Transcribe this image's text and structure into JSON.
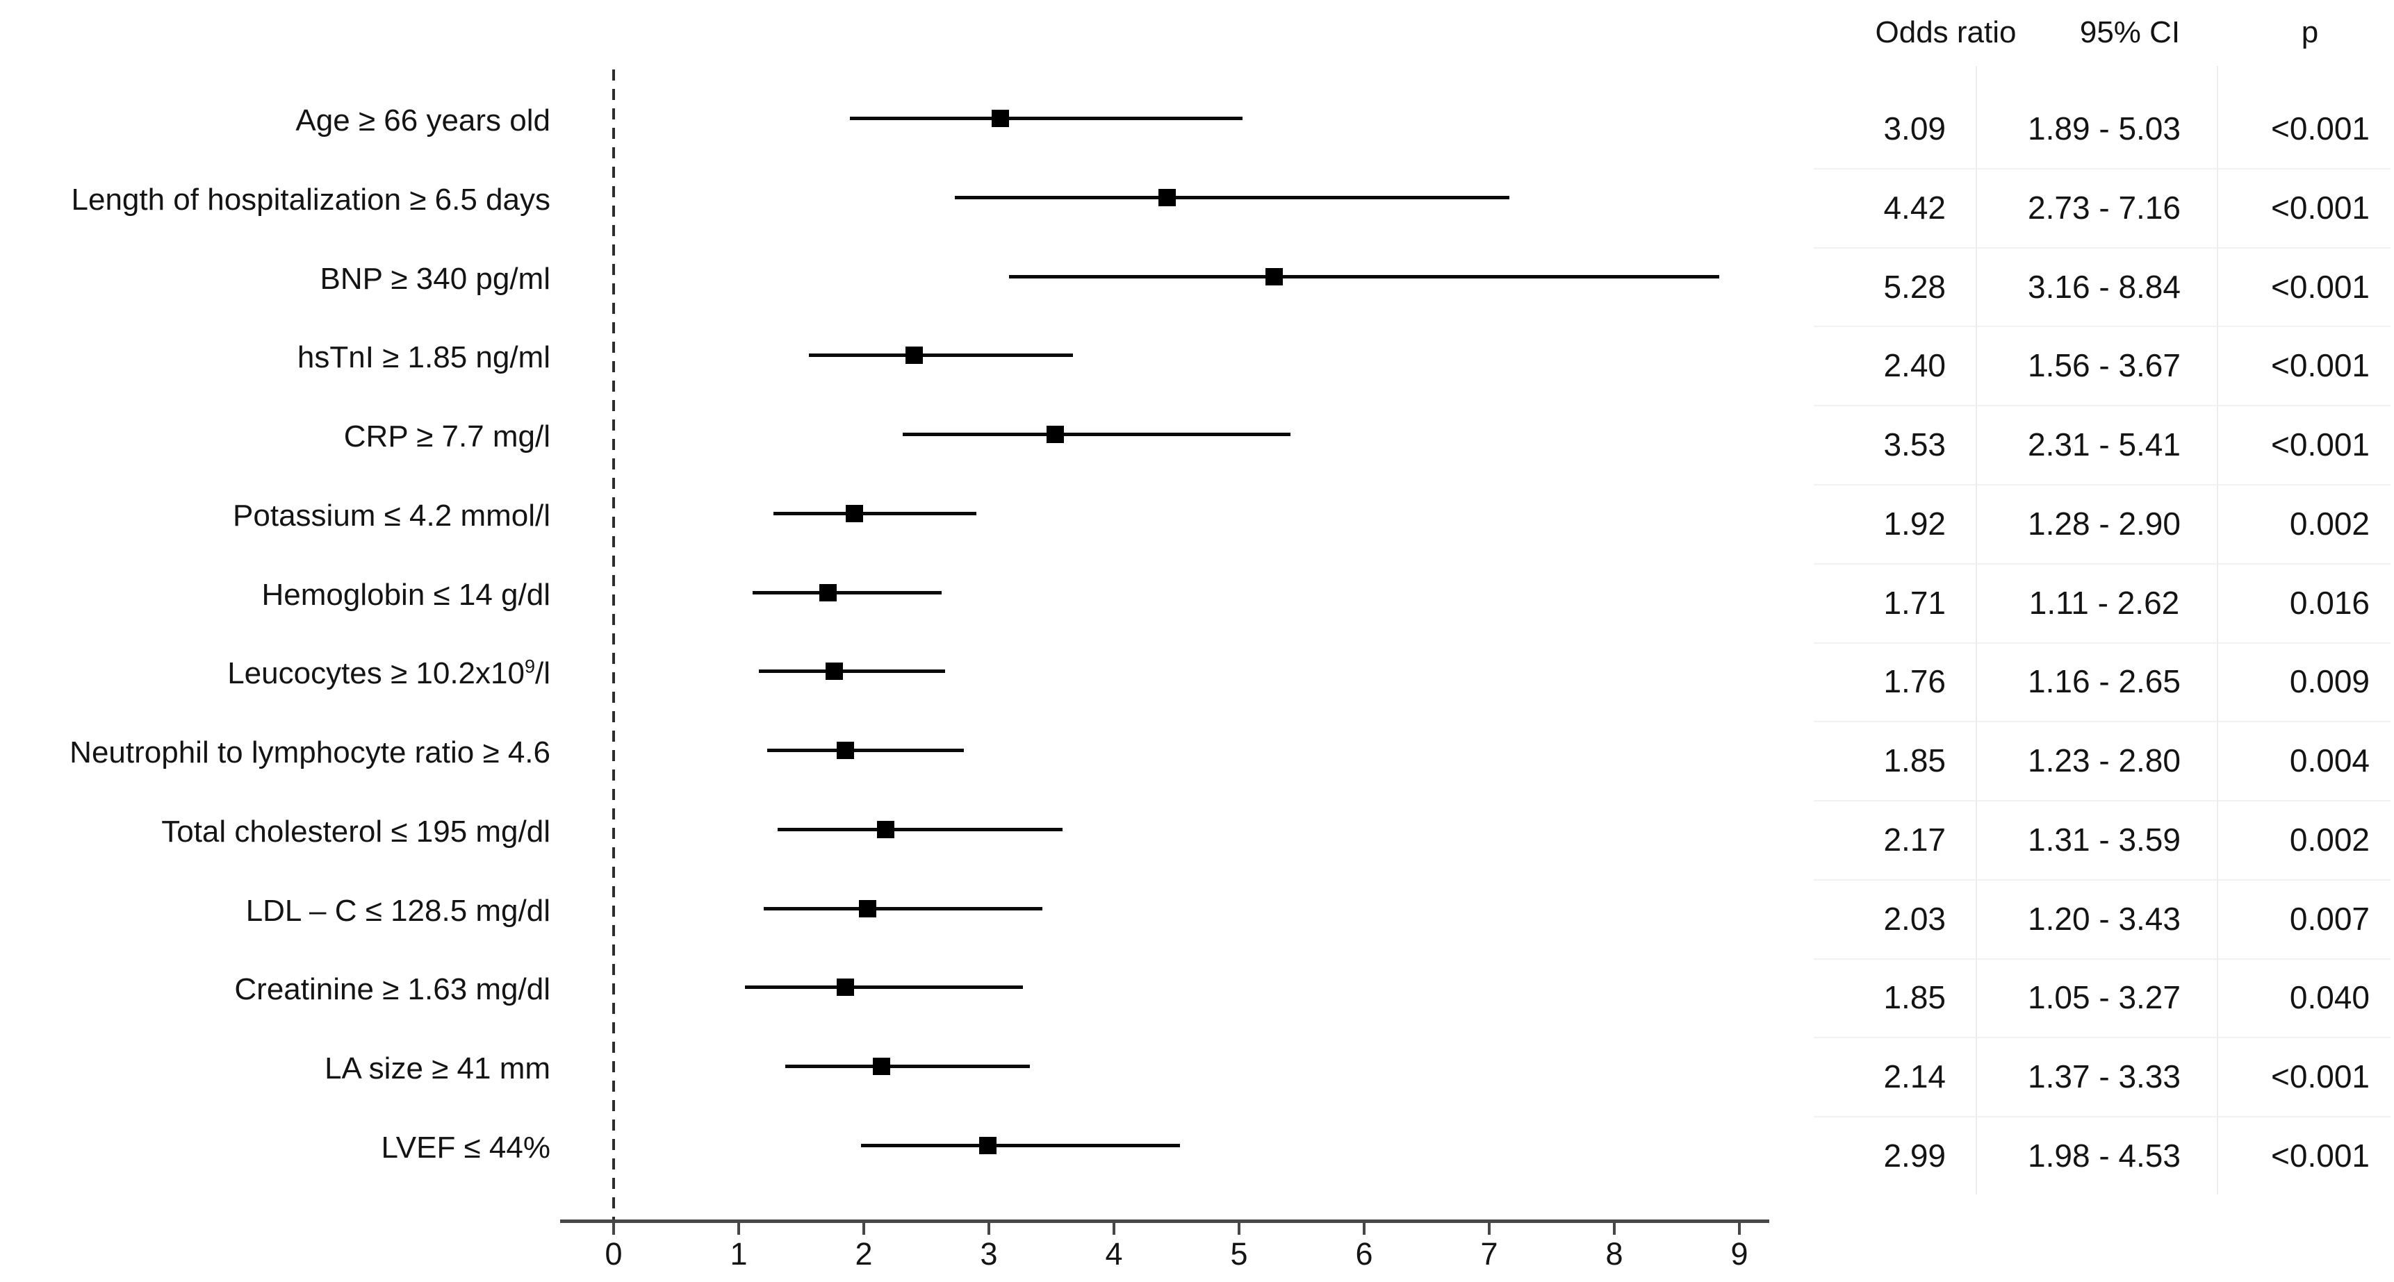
{
  "chart_data": {
    "type": "forest",
    "title": "",
    "legend": "none",
    "grid": "off",
    "xlabel": "",
    "ylabel": "",
    "axis": {
      "min": 0,
      "max": 9,
      "ticks": [
        "0",
        "1",
        "2",
        "3",
        "4",
        "5",
        "6",
        "7",
        "8",
        "9"
      ],
      "reference_line_x": 0
    },
    "columns": {
      "or_header": "Odds ratio",
      "ci_header": "95% CI",
      "p_header": "p"
    },
    "rows": [
      {
        "label": "Age ≥ 66 years old",
        "or": 3.09,
        "ci_low": 1.89,
        "ci_high": 5.03,
        "or_text": "3.09",
        "ci_text": "1.89 - 5.03",
        "p_text": "<0.001"
      },
      {
        "label": "Length of hospitalization ≥ 6.5 days",
        "or": 4.42,
        "ci_low": 2.73,
        "ci_high": 7.16,
        "or_text": "4.42",
        "ci_text": "2.73 - 7.16",
        "p_text": "<0.001"
      },
      {
        "label": "BNP ≥ 340 pg/ml",
        "or": 5.28,
        "ci_low": 3.16,
        "ci_high": 8.84,
        "or_text": "5.28",
        "ci_text": "3.16 - 8.84",
        "p_text": "<0.001"
      },
      {
        "label": "hsTnI ≥ 1.85 ng/ml",
        "or": 2.4,
        "ci_low": 1.56,
        "ci_high": 3.67,
        "or_text": "2.40",
        "ci_text": "1.56 - 3.67",
        "p_text": "<0.001"
      },
      {
        "label": "CRP ≥ 7.7 mg/l",
        "or": 3.53,
        "ci_low": 2.31,
        "ci_high": 5.41,
        "or_text": "3.53",
        "ci_text": "2.31 - 5.41",
        "p_text": "<0.001"
      },
      {
        "label": "Potassium ≤ 4.2 mmol/l",
        "or": 1.92,
        "ci_low": 1.28,
        "ci_high": 2.9,
        "or_text": "1.92",
        "ci_text": "1.28 - 2.90",
        "p_text": "0.002"
      },
      {
        "label": "Hemoglobin ≤ 14 g/dl",
        "or": 1.71,
        "ci_low": 1.11,
        "ci_high": 2.62,
        "or_text": "1.71",
        "ci_text": "1.11 - 2.62",
        "p_text": "0.016"
      },
      {
        "label": "Leucocytes ≥ 10.2x10",
        "label_sup": "9",
        "label_tail": "/l",
        "or": 1.76,
        "ci_low": 1.16,
        "ci_high": 2.65,
        "or_text": "1.76",
        "ci_text": "1.16 - 2.65",
        "p_text": "0.009"
      },
      {
        "label": "Neutrophil to lymphocyte ratio ≥ 4.6",
        "or": 1.85,
        "ci_low": 1.23,
        "ci_high": 2.8,
        "or_text": "1.85",
        "ci_text": "1.23 - 2.80",
        "p_text": "0.004"
      },
      {
        "label": "Total cholesterol ≤ 195 mg/dl",
        "or": 2.17,
        "ci_low": 1.31,
        "ci_high": 3.59,
        "or_text": "2.17",
        "ci_text": "1.31 - 3.59",
        "p_text": "0.002"
      },
      {
        "label": "LDL – C ≤ 128.5 mg/dl",
        "or": 2.03,
        "ci_low": 1.2,
        "ci_high": 3.43,
        "or_text": "2.03",
        "ci_text": "1.20 - 3.43",
        "p_text": "0.007"
      },
      {
        "label": "Creatinine ≥ 1.63 mg/dl",
        "or": 1.85,
        "ci_low": 1.05,
        "ci_high": 3.27,
        "or_text": "1.85",
        "ci_text": "1.05 - 3.27",
        "p_text": "0.040"
      },
      {
        "label": "LA size ≥ 41 mm",
        "or": 2.14,
        "ci_low": 1.37,
        "ci_high": 3.33,
        "or_text": "2.14",
        "ci_text": "1.37 - 3.33",
        "p_text": "<0.001"
      },
      {
        "label": "LVEF ≤ 44%",
        "or": 2.99,
        "ci_low": 1.98,
        "ci_high": 4.53,
        "or_text": "2.99",
        "ci_text": "1.98 - 4.53",
        "p_text": "<0.001"
      }
    ]
  }
}
